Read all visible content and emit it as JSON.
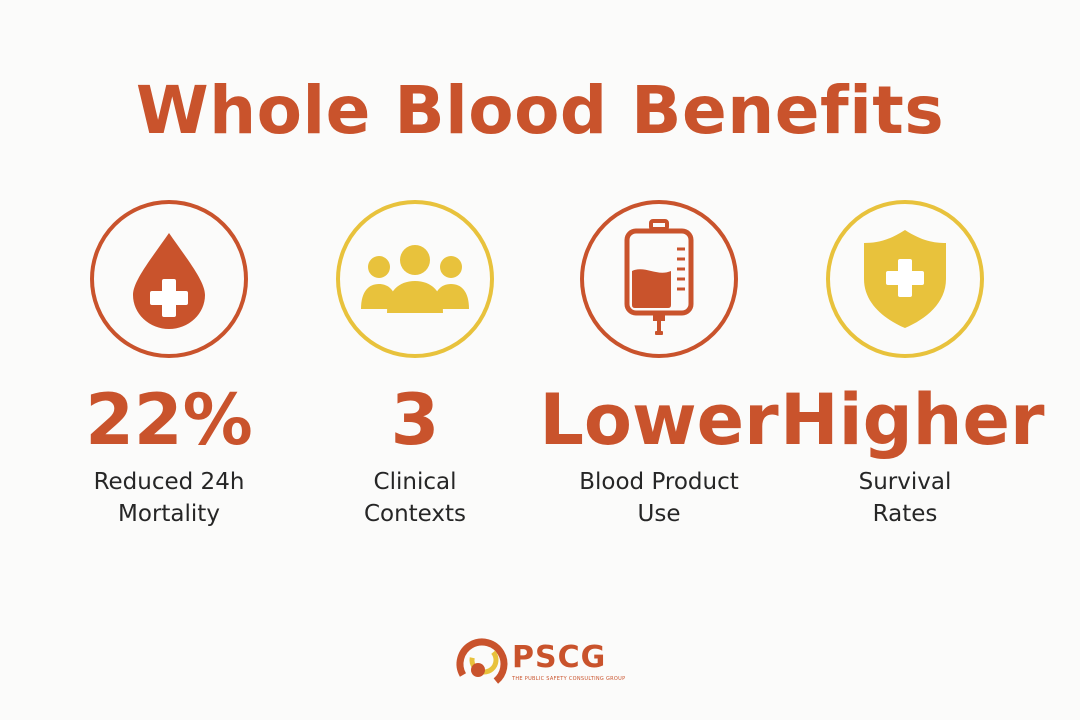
{
  "title": "Whole Blood Benefits",
  "colors": {
    "accent": "#c9532c",
    "gold": "#e8c23c",
    "text": "#262626",
    "background": "#fbfbfa"
  },
  "stats": [
    {
      "value": "22%",
      "label": "Reduced 24h\nMortality",
      "icon": "blood-drop-cross-icon",
      "ring": "#c9532c"
    },
    {
      "value": "3",
      "label": "Clinical\nContexts",
      "icon": "people-group-icon",
      "ring": "#e8c23c"
    },
    {
      "value": "Lower",
      "label": "Blood Product\nUse",
      "icon": "blood-bag-icon",
      "ring": "#c9532c"
    },
    {
      "value": "Higher",
      "label": "Survival\nRates",
      "icon": "shield-cross-icon",
      "ring": "#e8c23c"
    }
  ],
  "logo": {
    "name": "PSCG",
    "tagline": "THE PUBLIC SAFETY CONSULTING GROUP"
  }
}
